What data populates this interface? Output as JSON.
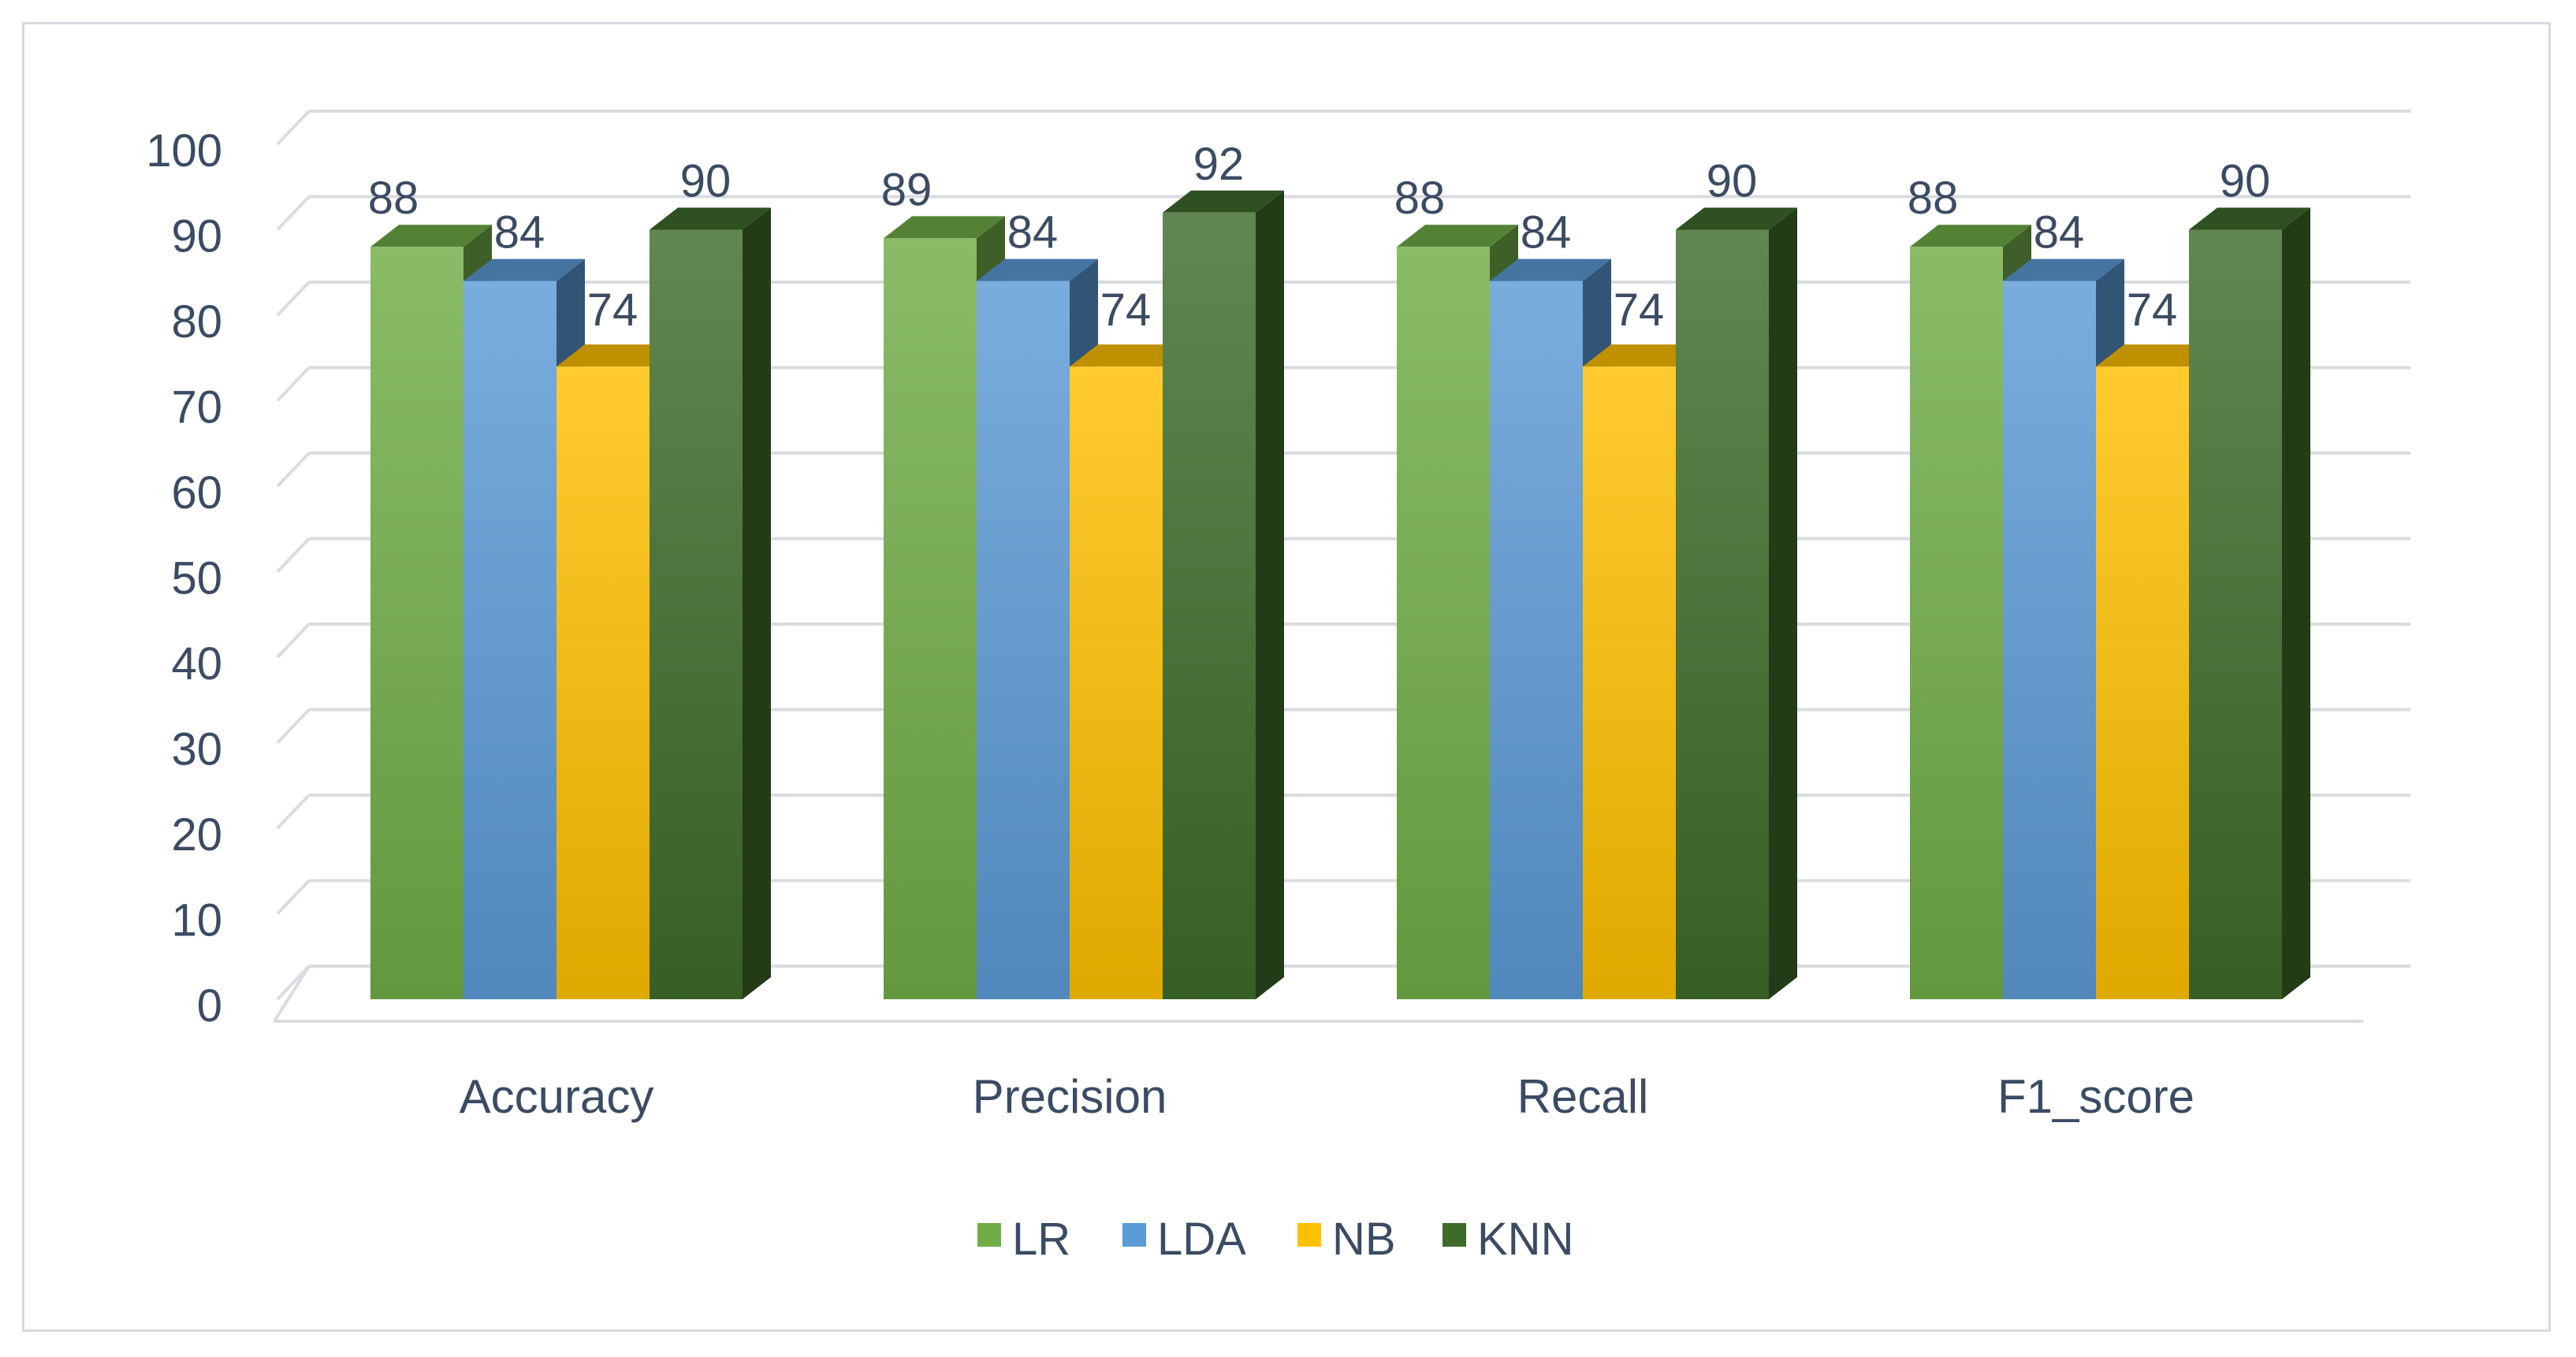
{
  "chart_data": {
    "type": "bar",
    "style": "3d-clustered-column",
    "categories": [
      "Accuracy",
      "Precision",
      "Recall",
      "F1_score"
    ],
    "series": [
      {
        "name": "LR",
        "values": [
          88,
          89,
          88,
          88
        ],
        "color": "#70ad47"
      },
      {
        "name": "LDA",
        "values": [
          84,
          84,
          84,
          84
        ],
        "color": "#5b9bd5"
      },
      {
        "name": "NB",
        "values": [
          74,
          74,
          74,
          74
        ],
        "color": "#ffc000"
      },
      {
        "name": "KNN",
        "values": [
          90,
          92,
          90,
          90
        ],
        "color": "#3f6b2a"
      }
    ],
    "yticks": [
      "0",
      "10",
      "20",
      "30",
      "40",
      "50",
      "60",
      "70",
      "80",
      "90",
      "100"
    ],
    "ylim": [
      0,
      100
    ],
    "grid": true,
    "legend_position": "bottom",
    "data_labels": true
  }
}
